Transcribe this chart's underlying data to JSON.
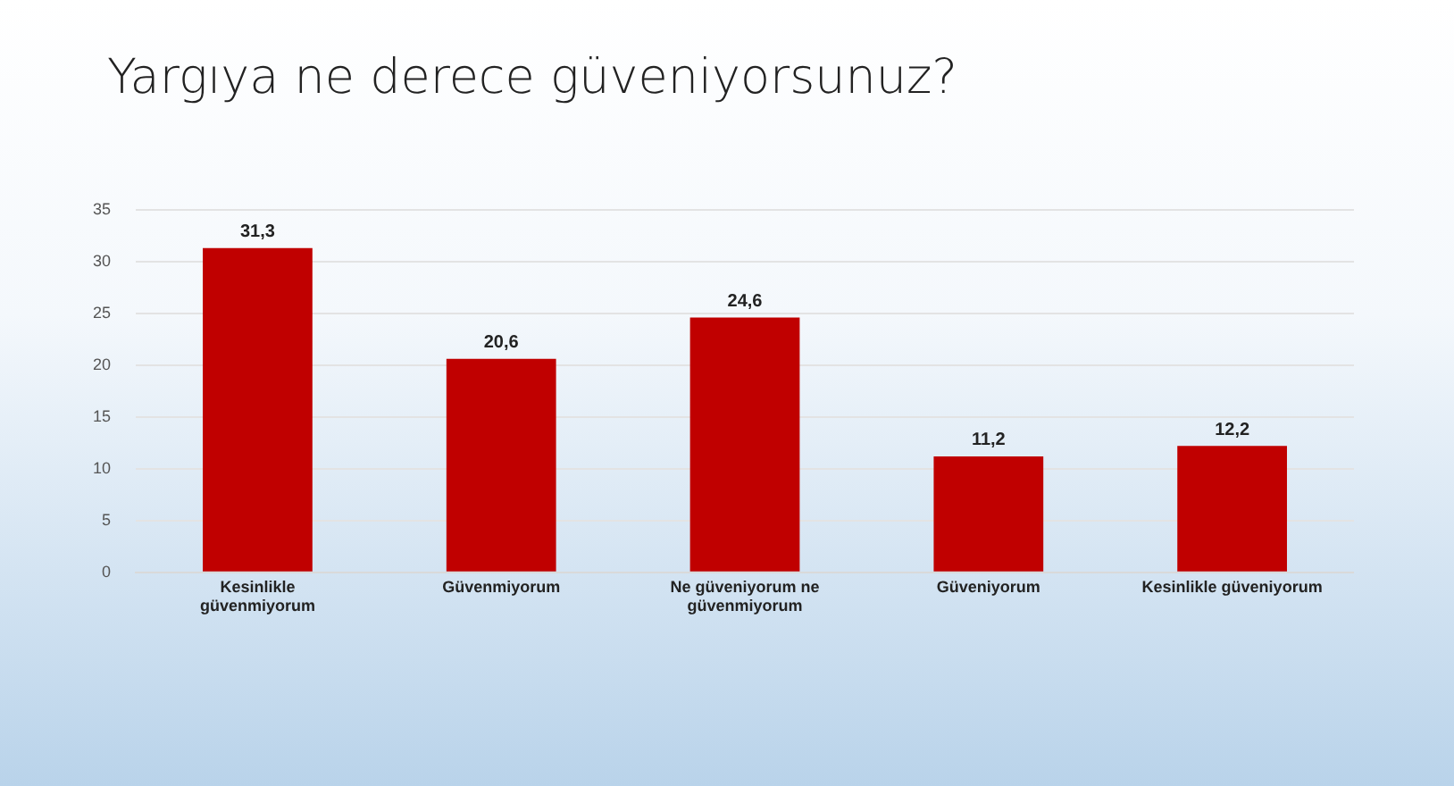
{
  "chart_data": {
    "type": "bar",
    "title": "Yargıya ne derece güveniyorsunuz?",
    "categories": [
      "Kesinlikle güvenmiyorum",
      "Güvenmiyorum",
      "Ne güveniyorum ne güvenmiyorum",
      "Güveniyorum",
      "Kesinlikle güveniyorum"
    ],
    "values": [
      31.3,
      20.6,
      24.6,
      11.2,
      12.2
    ],
    "value_labels": [
      "31,3",
      "20,6",
      "24,6",
      "11,2",
      "12,2"
    ],
    "color": "#c00000",
    "ylim": [
      0,
      35
    ],
    "yticks": [
      0,
      5,
      10,
      15,
      20,
      25,
      30,
      35
    ],
    "grid": "y",
    "legend": false
  }
}
